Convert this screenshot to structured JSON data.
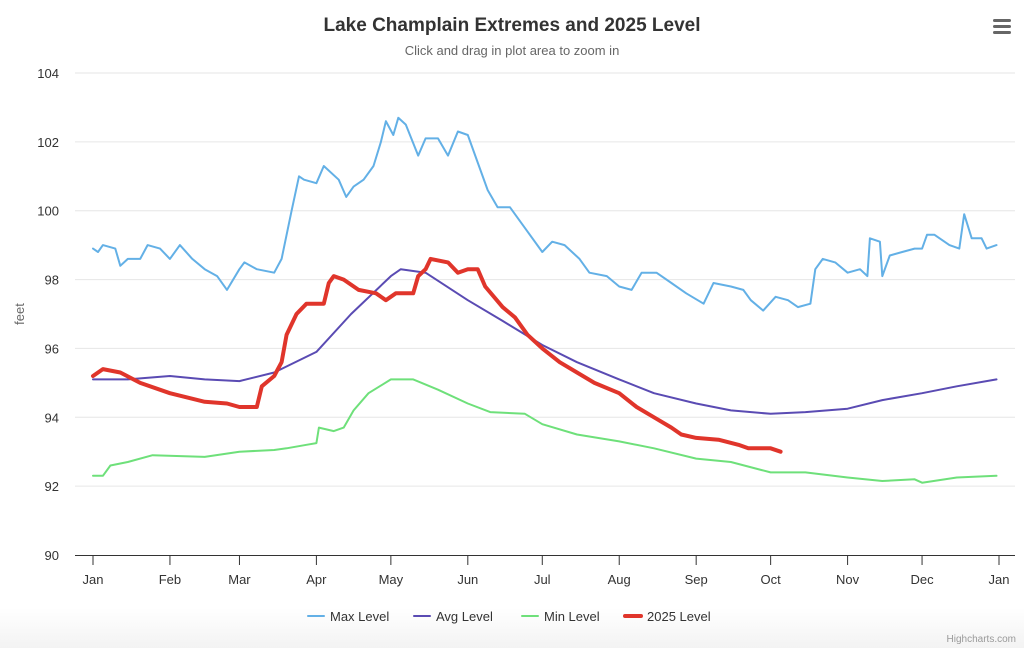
{
  "chart_data": {
    "type": "line",
    "title": "Lake Champlain Extremes and 2025 Level",
    "subtitle": "Click and drag in plot area to zoom in",
    "ylabel": "feet",
    "xlabel": "",
    "ylim": [
      90,
      104
    ],
    "yticks": [
      90,
      92,
      94,
      96,
      98,
      100,
      102,
      104
    ],
    "xticks": [
      "Jan",
      "Feb",
      "Mar",
      "Apr",
      "May",
      "Jun",
      "Jul",
      "Aug",
      "Sep",
      "Oct",
      "Nov",
      "Dec",
      "Jan"
    ],
    "grid": true,
    "legend_position": "bottom",
    "credits": "Highcharts.com",
    "menu_icon": "hamburger-menu-icon",
    "series": [
      {
        "name": "Max Level",
        "color": "#63b0e6",
        "width": 2,
        "data": [
          [
            "01-01",
            98.9
          ],
          [
            "01-03",
            98.8
          ],
          [
            "01-05",
            99.0
          ],
          [
            "01-10",
            98.9
          ],
          [
            "01-12",
            98.4
          ],
          [
            "01-15",
            98.6
          ],
          [
            "01-20",
            98.6
          ],
          [
            "01-23",
            99.0
          ],
          [
            "01-28",
            98.9
          ],
          [
            "02-01",
            98.6
          ],
          [
            "02-05",
            99.0
          ],
          [
            "02-10",
            98.6
          ],
          [
            "02-15",
            98.3
          ],
          [
            "02-20",
            98.1
          ],
          [
            "02-24",
            97.7
          ],
          [
            "03-01",
            98.3
          ],
          [
            "03-03",
            98.5
          ],
          [
            "03-08",
            98.3
          ],
          [
            "03-15",
            98.2
          ],
          [
            "03-18",
            98.6
          ],
          [
            "03-22",
            100.0
          ],
          [
            "03-25",
            101.0
          ],
          [
            "03-27",
            100.9
          ],
          [
            "04-01",
            100.8
          ],
          [
            "04-04",
            101.3
          ],
          [
            "04-10",
            100.9
          ],
          [
            "04-13",
            100.4
          ],
          [
            "04-16",
            100.7
          ],
          [
            "04-20",
            100.9
          ],
          [
            "04-24",
            101.3
          ],
          [
            "04-27",
            102.0
          ],
          [
            "04-29",
            102.6
          ],
          [
            "05-02",
            102.2
          ],
          [
            "05-04",
            102.7
          ],
          [
            "05-07",
            102.5
          ],
          [
            "05-12",
            101.6
          ],
          [
            "05-15",
            102.1
          ],
          [
            "05-20",
            102.1
          ],
          [
            "05-24",
            101.6
          ],
          [
            "05-28",
            102.3
          ],
          [
            "06-01",
            102.2
          ],
          [
            "06-05",
            101.4
          ],
          [
            "06-09",
            100.6
          ],
          [
            "06-13",
            100.1
          ],
          [
            "06-18",
            100.1
          ],
          [
            "06-24",
            99.5
          ],
          [
            "07-01",
            98.8
          ],
          [
            "07-05",
            99.1
          ],
          [
            "07-10",
            99.0
          ],
          [
            "07-16",
            98.6
          ],
          [
            "07-20",
            98.2
          ],
          [
            "07-27",
            98.1
          ],
          [
            "08-01",
            97.8
          ],
          [
            "08-06",
            97.7
          ],
          [
            "08-10",
            98.2
          ],
          [
            "08-16",
            98.2
          ],
          [
            "08-22",
            97.9
          ],
          [
            "08-28",
            97.6
          ],
          [
            "09-04",
            97.3
          ],
          [
            "09-08",
            97.9
          ],
          [
            "09-15",
            97.8
          ],
          [
            "09-20",
            97.7
          ],
          [
            "09-23",
            97.4
          ],
          [
            "09-28",
            97.1
          ],
          [
            "10-03",
            97.5
          ],
          [
            "10-08",
            97.4
          ],
          [
            "10-12",
            97.2
          ],
          [
            "10-17",
            97.3
          ],
          [
            "10-19",
            98.3
          ],
          [
            "10-22",
            98.6
          ],
          [
            "10-27",
            98.5
          ],
          [
            "11-01",
            98.2
          ],
          [
            "11-06",
            98.3
          ],
          [
            "11-09",
            98.1
          ],
          [
            "11-10",
            99.2
          ],
          [
            "11-14",
            99.1
          ],
          [
            "11-15",
            98.1
          ],
          [
            "11-18",
            98.7
          ],
          [
            "11-23",
            98.8
          ],
          [
            "11-28",
            98.9
          ],
          [
            "12-01",
            98.9
          ],
          [
            "12-03",
            99.3
          ],
          [
            "12-06",
            99.3
          ],
          [
            "12-12",
            99.0
          ],
          [
            "12-16",
            98.9
          ],
          [
            "12-18",
            99.9
          ],
          [
            "12-21",
            99.2
          ],
          [
            "12-25",
            99.2
          ],
          [
            "12-27",
            98.9
          ],
          [
            "12-31",
            99.0
          ]
        ]
      },
      {
        "name": "Avg Level",
        "color": "#5a4bb3",
        "width": 2,
        "data": [
          [
            "01-01",
            95.1
          ],
          [
            "01-15",
            95.1
          ],
          [
            "02-01",
            95.2
          ],
          [
            "02-15",
            95.1
          ],
          [
            "03-01",
            95.05
          ],
          [
            "03-15",
            95.3
          ],
          [
            "04-01",
            95.9
          ],
          [
            "04-15",
            97.0
          ],
          [
            "05-01",
            98.1
          ],
          [
            "05-05",
            98.3
          ],
          [
            "05-15",
            98.2
          ],
          [
            "06-01",
            97.4
          ],
          [
            "06-15",
            96.8
          ],
          [
            "07-01",
            96.1
          ],
          [
            "07-15",
            95.6
          ],
          [
            "08-01",
            95.1
          ],
          [
            "08-15",
            94.7
          ],
          [
            "09-01",
            94.4
          ],
          [
            "09-15",
            94.2
          ],
          [
            "10-01",
            94.1
          ],
          [
            "10-15",
            94.15
          ],
          [
            "11-01",
            94.25
          ],
          [
            "11-15",
            94.5
          ],
          [
            "12-01",
            94.7
          ],
          [
            "12-15",
            94.9
          ],
          [
            "12-31",
            95.1
          ]
        ]
      },
      {
        "name": "Min Level",
        "color": "#6ee07a",
        "width": 2,
        "data": [
          [
            "01-01",
            92.3
          ],
          [
            "01-05",
            92.3
          ],
          [
            "01-08",
            92.6
          ],
          [
            "01-15",
            92.7
          ],
          [
            "01-25",
            92.9
          ],
          [
            "02-15",
            92.85
          ],
          [
            "03-01",
            93.0
          ],
          [
            "03-15",
            93.05
          ],
          [
            "03-20",
            93.1
          ],
          [
            "03-28",
            93.2
          ],
          [
            "04-01",
            93.25
          ],
          [
            "04-02",
            93.7
          ],
          [
            "04-08",
            93.6
          ],
          [
            "04-12",
            93.7
          ],
          [
            "04-16",
            94.2
          ],
          [
            "04-22",
            94.7
          ],
          [
            "05-01",
            95.1
          ],
          [
            "05-10",
            95.1
          ],
          [
            "05-20",
            94.8
          ],
          [
            "06-01",
            94.4
          ],
          [
            "06-10",
            94.15
          ],
          [
            "06-24",
            94.1
          ],
          [
            "07-01",
            93.8
          ],
          [
            "07-15",
            93.5
          ],
          [
            "08-01",
            93.3
          ],
          [
            "08-15",
            93.1
          ],
          [
            "09-01",
            92.8
          ],
          [
            "09-15",
            92.7
          ],
          [
            "10-01",
            92.4
          ],
          [
            "10-15",
            92.4
          ],
          [
            "11-01",
            92.25
          ],
          [
            "11-15",
            92.15
          ],
          [
            "11-28",
            92.2
          ],
          [
            "12-01",
            92.1
          ],
          [
            "12-15",
            92.25
          ],
          [
            "12-31",
            92.3
          ]
        ]
      },
      {
        "name": "2025 Level",
        "color": "#e0352b",
        "width": 4,
        "data": [
          [
            "01-01",
            95.2
          ],
          [
            "01-05",
            95.4
          ],
          [
            "01-12",
            95.3
          ],
          [
            "01-20",
            95.0
          ],
          [
            "02-01",
            94.7
          ],
          [
            "02-15",
            94.45
          ],
          [
            "02-24",
            94.4
          ],
          [
            "03-01",
            94.3
          ],
          [
            "03-08",
            94.3
          ],
          [
            "03-10",
            94.9
          ],
          [
            "03-15",
            95.2
          ],
          [
            "03-18",
            95.6
          ],
          [
            "03-20",
            96.4
          ],
          [
            "03-24",
            97.0
          ],
          [
            "03-28",
            97.3
          ],
          [
            "04-04",
            97.3
          ],
          [
            "04-06",
            97.9
          ],
          [
            "04-08",
            98.1
          ],
          [
            "04-12",
            98.0
          ],
          [
            "04-18",
            97.7
          ],
          [
            "04-25",
            97.6
          ],
          [
            "04-29",
            97.4
          ],
          [
            "05-03",
            97.6
          ],
          [
            "05-10",
            97.6
          ],
          [
            "05-12",
            98.1
          ],
          [
            "05-15",
            98.3
          ],
          [
            "05-17",
            98.6
          ],
          [
            "05-24",
            98.5
          ],
          [
            "05-28",
            98.2
          ],
          [
            "06-01",
            98.3
          ],
          [
            "06-05",
            98.3
          ],
          [
            "06-08",
            97.8
          ],
          [
            "06-15",
            97.2
          ],
          [
            "06-20",
            96.9
          ],
          [
            "06-25",
            96.4
          ],
          [
            "07-01",
            96.0
          ],
          [
            "07-08",
            95.6
          ],
          [
            "07-15",
            95.3
          ],
          [
            "07-22",
            95.0
          ],
          [
            "08-01",
            94.7
          ],
          [
            "08-08",
            94.3
          ],
          [
            "08-15",
            94.0
          ],
          [
            "08-22",
            93.7
          ],
          [
            "08-26",
            93.5
          ],
          [
            "09-01",
            93.4
          ],
          [
            "09-10",
            93.35
          ],
          [
            "09-18",
            93.2
          ],
          [
            "09-22",
            93.1
          ],
          [
            "10-01",
            93.1
          ],
          [
            "10-05",
            93.0
          ]
        ]
      }
    ]
  }
}
